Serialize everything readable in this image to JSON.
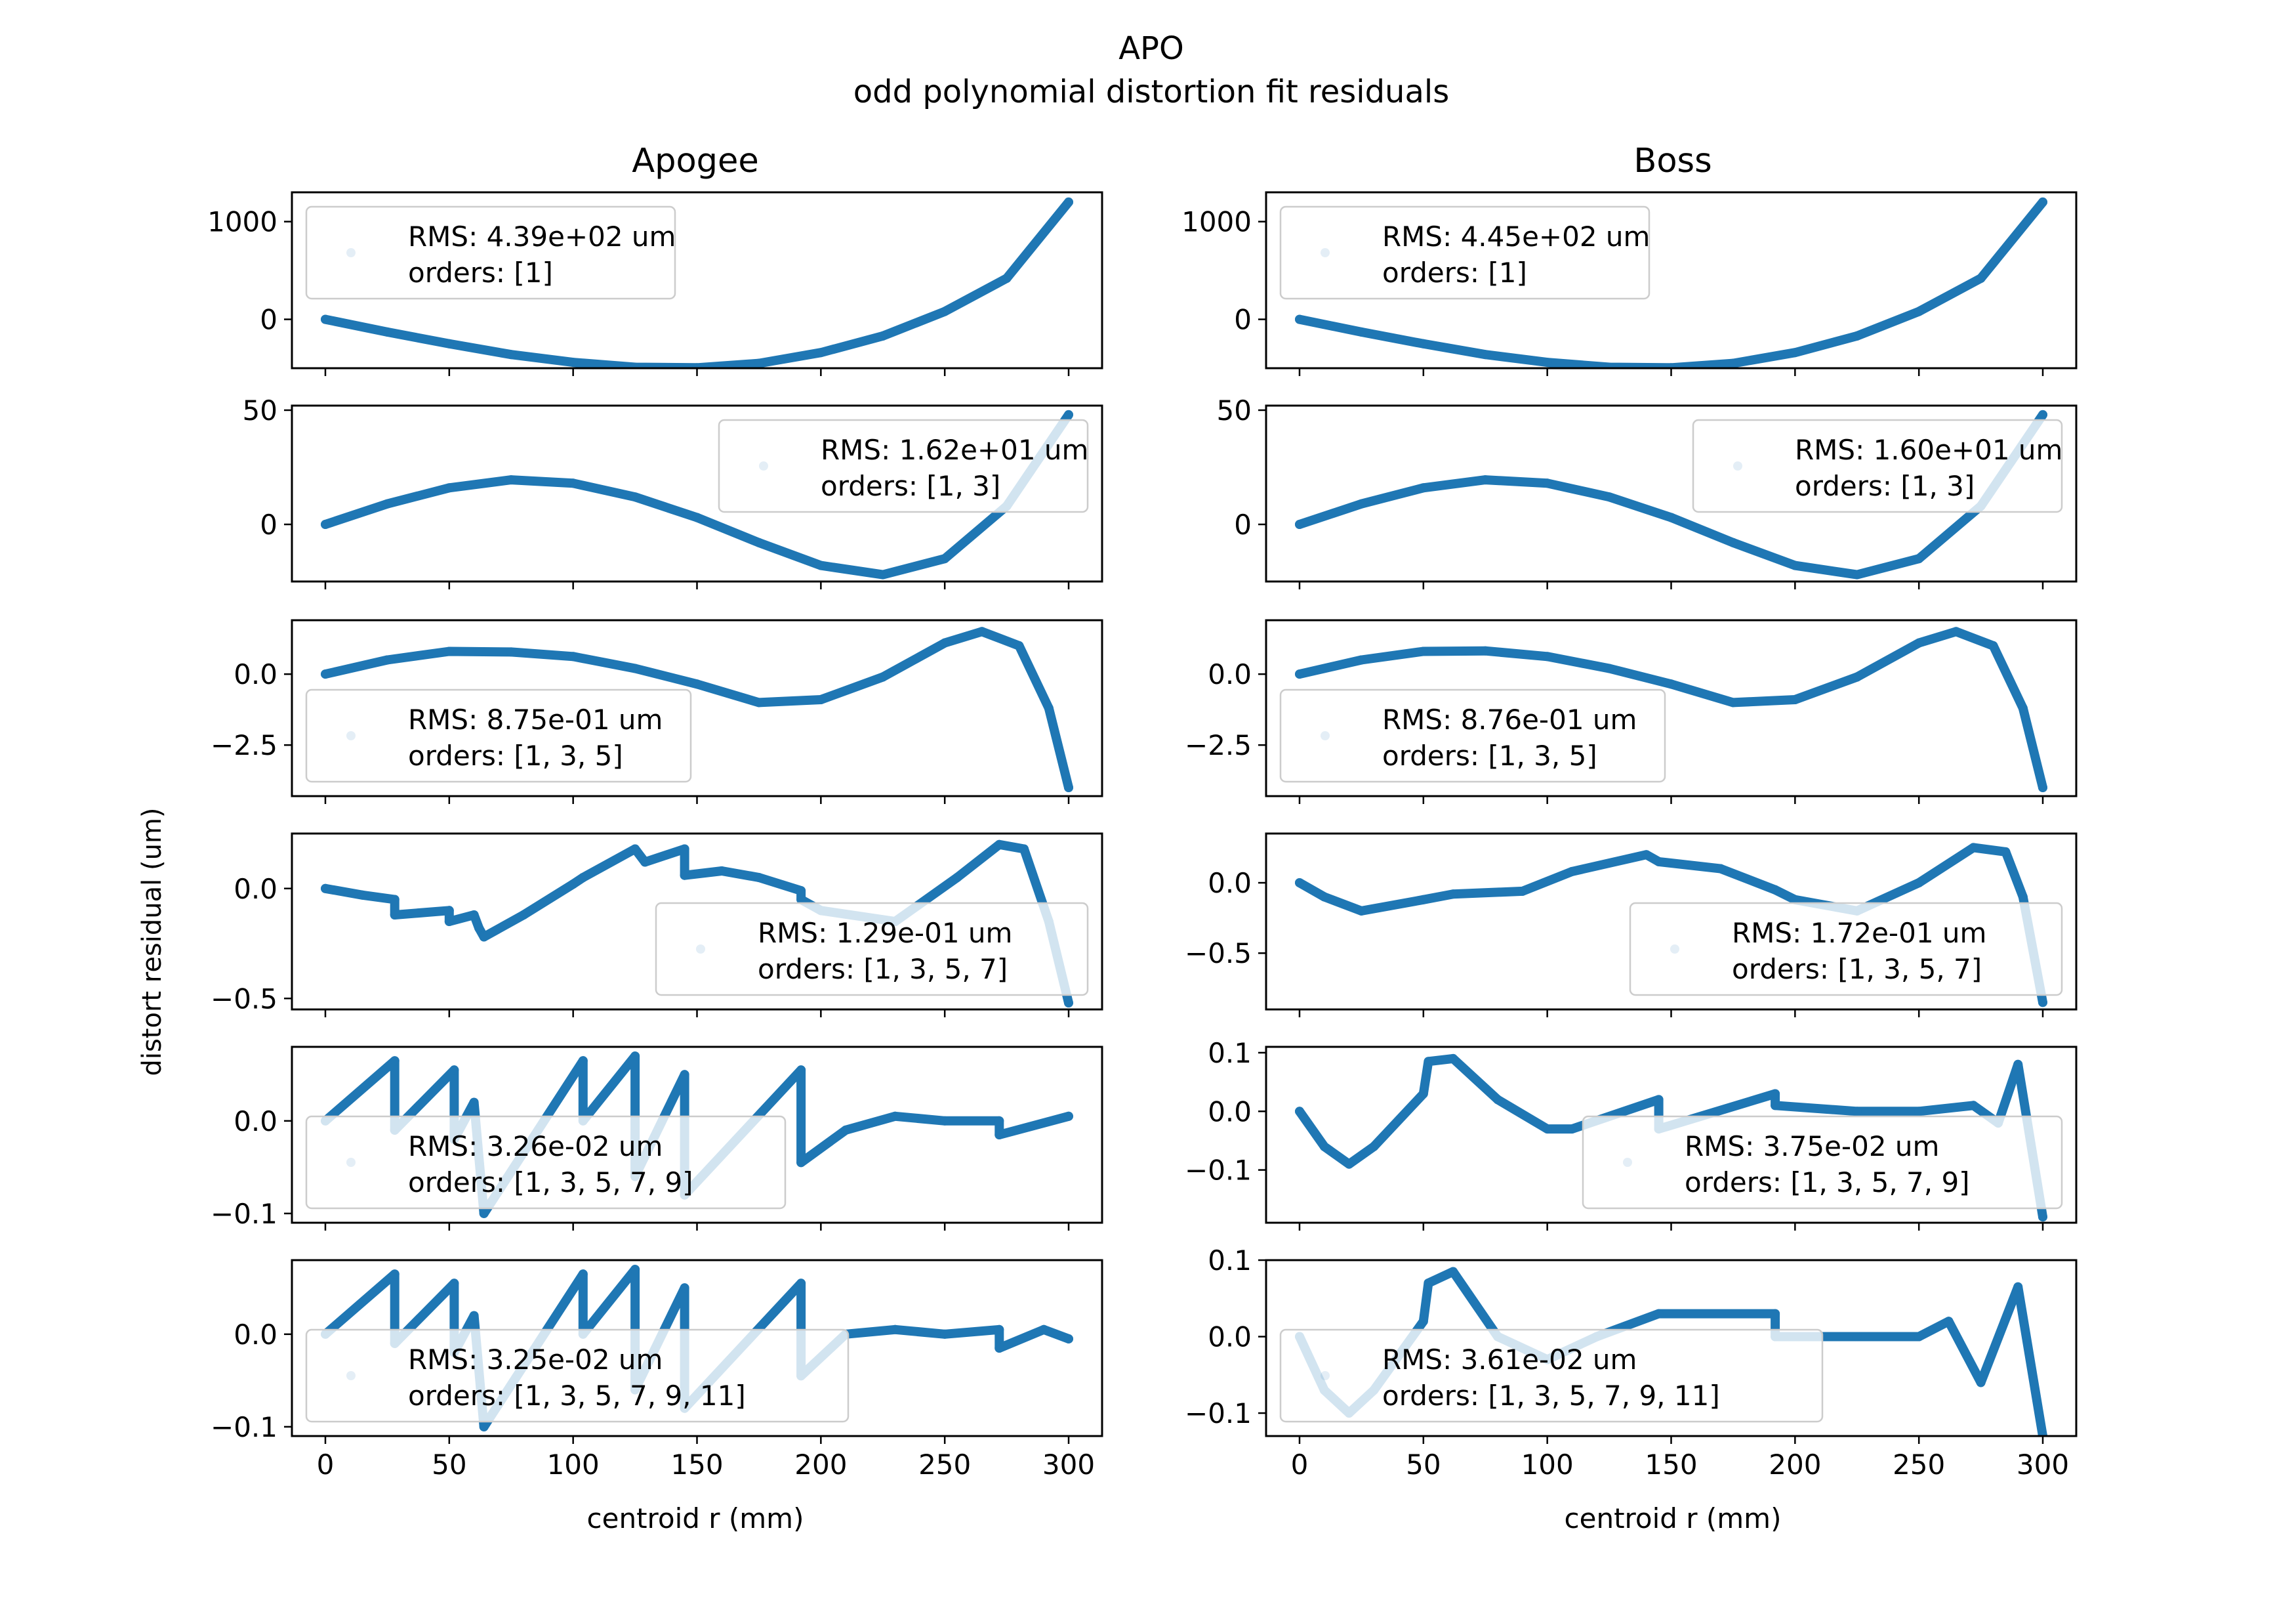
{
  "figure": {
    "title": "APO",
    "subtitle": "odd polynomial distortion fit residuals",
    "ylabel": "distort residual (um)",
    "xlabel": "centroid r (mm)",
    "column_titles": [
      "Apogee",
      "Boss"
    ],
    "xticks": [
      "0",
      "50",
      "100",
      "150",
      "200",
      "250",
      "300"
    ],
    "series_color": "#1f77b4"
  },
  "chart_data": [
    {
      "type": "scatter",
      "column": "Apogee",
      "row": 1,
      "x_range": [
        0,
        300
      ],
      "ylim": [
        -500,
        1300
      ],
      "yticks": [
        "1000",
        "0"
      ],
      "ytick_values": [
        1000,
        0
      ],
      "legend": {
        "rms": "RMS: 4.39e+02 um",
        "orders": "orders: [1]",
        "position": "upper-left"
      },
      "curve": [
        [
          0,
          0
        ],
        [
          25,
          -130
        ],
        [
          50,
          -250
        ],
        [
          75,
          -360
        ],
        [
          100,
          -440
        ],
        [
          125,
          -490
        ],
        [
          150,
          -495
        ],
        [
          175,
          -450
        ],
        [
          200,
          -340
        ],
        [
          225,
          -170
        ],
        [
          250,
          80
        ],
        [
          275,
          420
        ],
        [
          300,
          1200
        ]
      ]
    },
    {
      "type": "scatter",
      "column": "Boss",
      "row": 1,
      "x_range": [
        0,
        300
      ],
      "ylim": [
        -500,
        1300
      ],
      "yticks": [
        "1000",
        "0"
      ],
      "ytick_values": [
        1000,
        0
      ],
      "legend": {
        "rms": "RMS: 4.45e+02 um",
        "orders": "orders: [1]",
        "position": "upper-left"
      },
      "curve": [
        [
          0,
          0
        ],
        [
          25,
          -130
        ],
        [
          50,
          -250
        ],
        [
          75,
          -360
        ],
        [
          100,
          -440
        ],
        [
          125,
          -490
        ],
        [
          150,
          -495
        ],
        [
          175,
          -450
        ],
        [
          200,
          -340
        ],
        [
          225,
          -170
        ],
        [
          250,
          80
        ],
        [
          275,
          420
        ],
        [
          300,
          1200
        ]
      ]
    },
    {
      "type": "scatter",
      "column": "Apogee",
      "row": 2,
      "x_range": [
        0,
        300
      ],
      "ylim": [
        -25,
        52
      ],
      "yticks": [
        "50",
        "0"
      ],
      "ytick_values": [
        50,
        0
      ],
      "legend": {
        "rms": "RMS: 1.62e+01 um",
        "orders": "orders: [1, 3]",
        "position": "upper-right"
      },
      "curve": [
        [
          0,
          0
        ],
        [
          25,
          9
        ],
        [
          50,
          16
        ],
        [
          75,
          19.5
        ],
        [
          100,
          18
        ],
        [
          125,
          12
        ],
        [
          150,
          3
        ],
        [
          175,
          -8
        ],
        [
          200,
          -18
        ],
        [
          225,
          -22
        ],
        [
          250,
          -15
        ],
        [
          275,
          8
        ],
        [
          300,
          48
        ]
      ]
    },
    {
      "type": "scatter",
      "column": "Boss",
      "row": 2,
      "x_range": [
        0,
        300
      ],
      "ylim": [
        -25,
        52
      ],
      "yticks": [
        "50",
        "0"
      ],
      "ytick_values": [
        50,
        0
      ],
      "legend": {
        "rms": "RMS: 1.60e+01 um",
        "orders": "orders: [1, 3]",
        "position": "upper-right"
      },
      "curve": [
        [
          0,
          0
        ],
        [
          25,
          9
        ],
        [
          50,
          16
        ],
        [
          75,
          19.5
        ],
        [
          100,
          18
        ],
        [
          125,
          12
        ],
        [
          150,
          3
        ],
        [
          175,
          -8
        ],
        [
          200,
          -18
        ],
        [
          225,
          -22
        ],
        [
          250,
          -15
        ],
        [
          275,
          8
        ],
        [
          300,
          48
        ]
      ]
    },
    {
      "type": "scatter",
      "column": "Apogee",
      "row": 3,
      "x_range": [
        0,
        300
      ],
      "ylim": [
        -4.3,
        1.9
      ],
      "yticks": [
        "0.0",
        "−2.5"
      ],
      "ytick_values": [
        0,
        -2.5
      ],
      "legend": {
        "rms": "RMS: 8.75e-01 um",
        "orders": "orders: [1, 3, 5]",
        "position": "lower-left"
      },
      "curve": [
        [
          0,
          0
        ],
        [
          25,
          0.5
        ],
        [
          50,
          0.8
        ],
        [
          75,
          0.78
        ],
        [
          100,
          0.62
        ],
        [
          125,
          0.2
        ],
        [
          150,
          -0.35
        ],
        [
          175,
          -1.0
        ],
        [
          200,
          -0.9
        ],
        [
          225,
          -0.1
        ],
        [
          250,
          1.1
        ],
        [
          265,
          1.5
        ],
        [
          280,
          1.0
        ],
        [
          292,
          -1.2
        ],
        [
          300,
          -4.0
        ]
      ]
    },
    {
      "type": "scatter",
      "column": "Boss",
      "row": 3,
      "x_range": [
        0,
        300
      ],
      "ylim": [
        -4.3,
        1.9
      ],
      "yticks": [
        "0.0",
        "−2.5"
      ],
      "ytick_values": [
        0,
        -2.5
      ],
      "legend": {
        "rms": "RMS: 8.76e-01 um",
        "orders": "orders: [1, 3, 5]",
        "position": "lower-left"
      },
      "curve": [
        [
          0,
          0
        ],
        [
          25,
          0.5
        ],
        [
          50,
          0.8
        ],
        [
          75,
          0.82
        ],
        [
          100,
          0.62
        ],
        [
          125,
          0.2
        ],
        [
          150,
          -0.35
        ],
        [
          175,
          -1.0
        ],
        [
          200,
          -0.9
        ],
        [
          225,
          -0.1
        ],
        [
          250,
          1.1
        ],
        [
          265,
          1.5
        ],
        [
          280,
          1.0
        ],
        [
          292,
          -1.2
        ],
        [
          300,
          -4.0
        ]
      ]
    },
    {
      "type": "scatter",
      "column": "Apogee",
      "row": 4,
      "x_range": [
        0,
        300
      ],
      "ylim": [
        -0.55,
        0.25
      ],
      "yticks": [
        "0.0",
        "−0.5"
      ],
      "ytick_values": [
        0,
        -0.5
      ],
      "legend": {
        "rms": "RMS: 1.29e-01 um",
        "orders": "orders: [1, 3, 5, 7]",
        "position": "lower-right"
      },
      "curve": [
        [
          0,
          0
        ],
        [
          15,
          -0.03
        ],
        [
          28,
          -0.05
        ],
        [
          28,
          -0.12
        ],
        [
          50,
          -0.1
        ],
        [
          50,
          -0.15
        ],
        [
          60,
          -0.12
        ],
        [
          62,
          -0.18
        ],
        [
          64,
          -0.22
        ],
        [
          80,
          -0.12
        ],
        [
          100,
          0.02
        ],
        [
          104,
          0.05
        ],
        [
          125,
          0.18
        ],
        [
          129,
          0.12
        ],
        [
          145,
          0.18
        ],
        [
          145,
          0.06
        ],
        [
          160,
          0.08
        ],
        [
          175,
          0.05
        ],
        [
          192,
          -0.01
        ],
        [
          192,
          -0.05
        ],
        [
          200,
          -0.1
        ],
        [
          230,
          -0.15
        ],
        [
          255,
          0.05
        ],
        [
          272,
          0.2
        ],
        [
          282,
          0.18
        ],
        [
          292,
          -0.15
        ],
        [
          300,
          -0.52
        ]
      ]
    },
    {
      "type": "scatter",
      "column": "Boss",
      "row": 4,
      "x_range": [
        0,
        300
      ],
      "ylim": [
        -0.9,
        0.35
      ],
      "yticks": [
        "0.0",
        "−0.5"
      ],
      "ytick_values": [
        0,
        -0.5
      ],
      "legend": {
        "rms": "RMS: 1.72e-01 um",
        "orders": "orders: [1, 3, 5, 7]",
        "position": "lower-right"
      },
      "curve": [
        [
          0,
          0
        ],
        [
          10,
          -0.1
        ],
        [
          25,
          -0.2
        ],
        [
          50,
          -0.12
        ],
        [
          62,
          -0.08
        ],
        [
          90,
          -0.06
        ],
        [
          110,
          0.08
        ],
        [
          140,
          0.2
        ],
        [
          145,
          0.15
        ],
        [
          170,
          0.1
        ],
        [
          192,
          -0.05
        ],
        [
          200,
          -0.12
        ],
        [
          225,
          -0.2
        ],
        [
          250,
          0.0
        ],
        [
          272,
          0.25
        ],
        [
          285,
          0.22
        ],
        [
          292,
          -0.1
        ],
        [
          300,
          -0.85
        ]
      ]
    },
    {
      "type": "scatter",
      "column": "Apogee",
      "row": 5,
      "x_range": [
        0,
        300
      ],
      "ylim": [
        -0.11,
        0.08
      ],
      "yticks": [
        "0.0",
        "−0.1"
      ],
      "ytick_values": [
        0,
        -0.1
      ],
      "legend": {
        "rms": "RMS: 3.26e-02 um",
        "orders": "orders: [1, 3, 5, 7, 9]",
        "position": "lower-left"
      },
      "curve": [
        [
          0,
          0
        ],
        [
          28,
          0.065
        ],
        [
          28,
          -0.01
        ],
        [
          52,
          0.055
        ],
        [
          52,
          -0.02
        ],
        [
          60,
          0.02
        ],
        [
          64,
          -0.1
        ],
        [
          104,
          0.065
        ],
        [
          104,
          0.0
        ],
        [
          125,
          0.07
        ],
        [
          125,
          -0.06
        ],
        [
          145,
          0.05
        ],
        [
          145,
          -0.08
        ],
        [
          192,
          0.055
        ],
        [
          192,
          -0.045
        ],
        [
          210,
          -0.01
        ],
        [
          230,
          0.005
        ],
        [
          250,
          0.0
        ],
        [
          272,
          0.0
        ],
        [
          272,
          -0.015
        ],
        [
          300,
          0.005
        ]
      ]
    },
    {
      "type": "scatter",
      "column": "Boss",
      "row": 5,
      "x_range": [
        0,
        300
      ],
      "ylim": [
        -0.19,
        0.11
      ],
      "yticks": [
        "0.1",
        "0.0",
        "−0.1"
      ],
      "ytick_values": [
        0.1,
        0,
        -0.1
      ],
      "legend": {
        "rms": "RMS: 3.75e-02 um",
        "orders": "orders: [1, 3, 5, 7, 9]",
        "position": "lower-right"
      },
      "curve": [
        [
          0,
          0
        ],
        [
          10,
          -0.06
        ],
        [
          20,
          -0.09
        ],
        [
          30,
          -0.06
        ],
        [
          50,
          0.03
        ],
        [
          52,
          0.085
        ],
        [
          62,
          0.09
        ],
        [
          80,
          0.02
        ],
        [
          100,
          -0.03
        ],
        [
          110,
          -0.03
        ],
        [
          145,
          0.02
        ],
        [
          145,
          -0.03
        ],
        [
          192,
          0.03
        ],
        [
          192,
          0.01
        ],
        [
          225,
          0.0
        ],
        [
          250,
          0.0
        ],
        [
          272,
          0.01
        ],
        [
          282,
          -0.02
        ],
        [
          290,
          0.08
        ],
        [
          300,
          -0.18
        ]
      ]
    },
    {
      "type": "scatter",
      "column": "Apogee",
      "row": 6,
      "x_range": [
        0,
        300
      ],
      "ylim": [
        -0.11,
        0.08
      ],
      "yticks": [
        "0.0",
        "−0.1"
      ],
      "ytick_values": [
        0,
        -0.1
      ],
      "legend": {
        "rms": "RMS: 3.25e-02 um",
        "orders": "orders: [1, 3, 5, 7, 9, 11]",
        "position": "lower-left"
      },
      "curve": [
        [
          0,
          0
        ],
        [
          28,
          0.065
        ],
        [
          28,
          -0.01
        ],
        [
          52,
          0.055
        ],
        [
          52,
          -0.02
        ],
        [
          60,
          0.02
        ],
        [
          64,
          -0.1
        ],
        [
          104,
          0.065
        ],
        [
          104,
          0.0
        ],
        [
          125,
          0.07
        ],
        [
          125,
          -0.06
        ],
        [
          145,
          0.05
        ],
        [
          145,
          -0.08
        ],
        [
          192,
          0.055
        ],
        [
          192,
          -0.045
        ],
        [
          210,
          0.0
        ],
        [
          230,
          0.005
        ],
        [
          250,
          0.0
        ],
        [
          272,
          0.005
        ],
        [
          272,
          -0.015
        ],
        [
          290,
          0.005
        ],
        [
          300,
          -0.005
        ]
      ]
    },
    {
      "type": "scatter",
      "column": "Boss",
      "row": 6,
      "x_range": [
        0,
        300
      ],
      "ylim": [
        -0.13,
        0.1
      ],
      "yticks": [
        "0.1",
        "0.0",
        "−0.1"
      ],
      "ytick_values": [
        0.1,
        0,
        -0.1
      ],
      "legend": {
        "rms": "RMS: 3.61e-02 um",
        "orders": "orders: [1, 3, 5, 7, 9, 11]",
        "position": "lower-left"
      },
      "curve": [
        [
          0,
          0
        ],
        [
          10,
          -0.07
        ],
        [
          20,
          -0.1
        ],
        [
          30,
          -0.07
        ],
        [
          50,
          0.02
        ],
        [
          52,
          0.07
        ],
        [
          62,
          0.085
        ],
        [
          80,
          0.0
        ],
        [
          100,
          -0.03
        ],
        [
          120,
          0.0
        ],
        [
          145,
          0.03
        ],
        [
          192,
          0.03
        ],
        [
          192,
          0.0
        ],
        [
          225,
          0.0
        ],
        [
          250,
          0.0
        ],
        [
          262,
          0.02
        ],
        [
          275,
          -0.06
        ],
        [
          290,
          0.065
        ],
        [
          300,
          -0.13
        ]
      ]
    }
  ]
}
